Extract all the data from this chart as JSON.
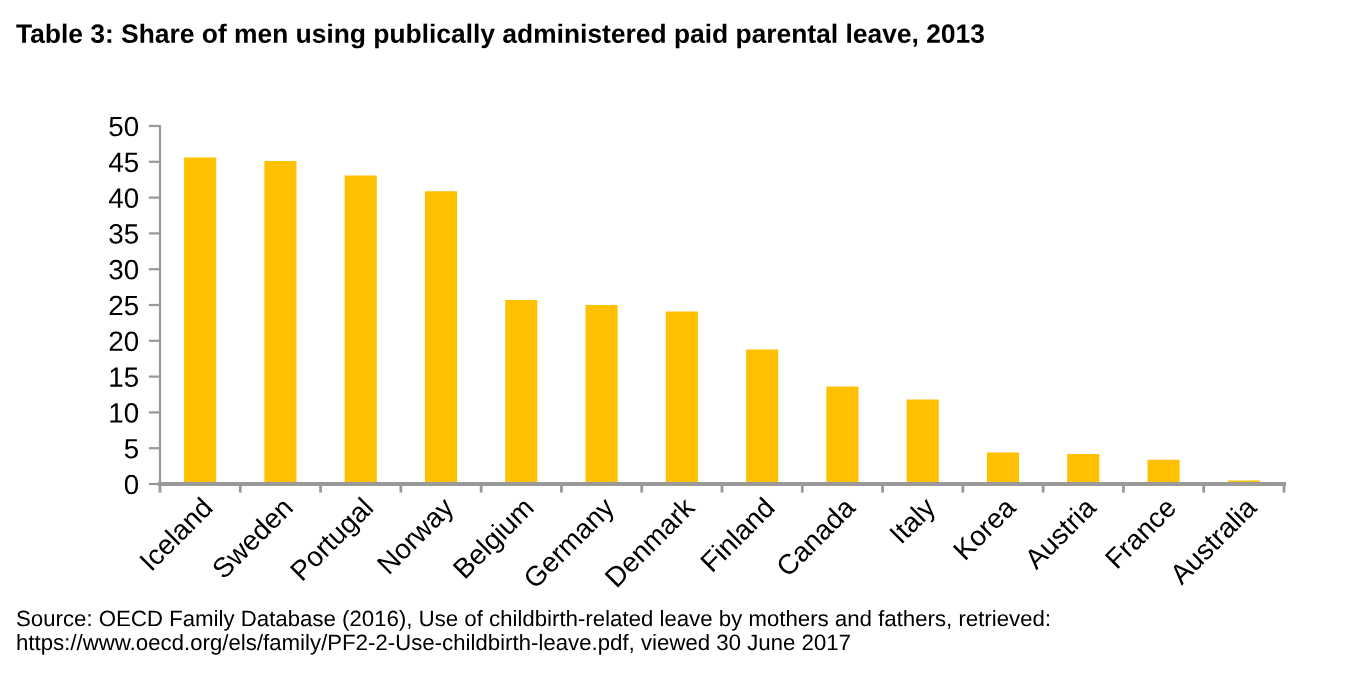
{
  "chart_data": {
    "type": "bar",
    "title": "Table 3: Share of men using publically administered paid parental leave, 2013",
    "categories": [
      "Iceland",
      "Sweden",
      "Portugal",
      "Norway",
      "Belgium",
      "Germany",
      "Denmark",
      "Finland",
      "Canada",
      "Italy",
      "Korea",
      "Austria",
      "France",
      "Australia"
    ],
    "values": [
      45.6,
      45.1,
      43.1,
      40.9,
      25.7,
      25.0,
      24.1,
      18.8,
      13.6,
      11.8,
      4.4,
      4.2,
      3.4,
      0.5
    ],
    "color": "#ffc000",
    "ylim": [
      0,
      50
    ],
    "yticks": [
      0,
      5,
      10,
      15,
      20,
      25,
      30,
      35,
      40,
      45,
      50
    ],
    "grid": false,
    "legend": false,
    "annotations": [
      "Source: OECD Family Database (2016), Use of childbirth-related leave by mothers and fathers, retrieved: https://www.oecd.org/els/family/PF2-2-Use-childbirth-leave.pdf, viewed 30 June 2017"
    ]
  }
}
